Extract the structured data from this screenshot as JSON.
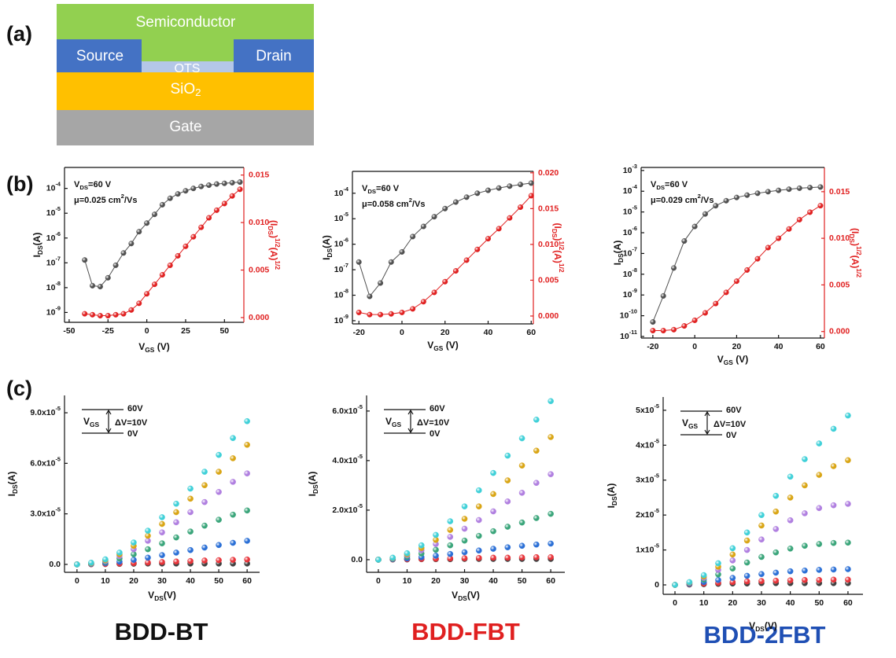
{
  "panel_labels": [
    "(a)",
    "(b)",
    "(c)"
  ],
  "device": {
    "layers": [
      "Semiconductor",
      "Source",
      "Drain",
      "OTS",
      "SiO2",
      "Gate"
    ]
  },
  "chart_data": [
    {
      "type": "line",
      "x": [
        -40,
        -35,
        -30,
        -25,
        -20,
        -15,
        -10,
        -5,
        0,
        5,
        10,
        15,
        20,
        25,
        30,
        35,
        40,
        45,
        50,
        55,
        60
      ],
      "xlim": [
        -53,
        62.5
      ],
      "xticks": [
        -50,
        -25,
        0,
        25,
        50
      ],
      "xlabel": "VGS (V)",
      "ylabel": "IDS(A)",
      "yscale": "log",
      "ylim": [
        4e-10,
        0.0007
      ],
      "yticks": [
        {
          "value": 1e-09,
          "label": "10-9"
        },
        {
          "value": 1e-08,
          "label": "10-8"
        },
        {
          "value": 1e-07,
          "label": "10-7"
        },
        {
          "value": 1e-06,
          "label": "10-6"
        },
        {
          "value": 1e-05,
          "label": "10-5"
        },
        {
          "value": 0.0001,
          "label": "10-4"
        }
      ],
      "y2label": "(IDS)1/2(A)1/2",
      "y2lim": [
        -0.0005,
        0.0158
      ],
      "y2ticks": [
        {
          "value": 0,
          "label": "0.000"
        },
        0.005,
        {
          "value": 0.01,
          "label": "0.010"
        },
        0.015
      ],
      "annotations": [
        "VDS=60 V",
        "μ=0.025 cm2/Vs"
      ],
      "series": [
        {
          "color": "#505050",
          "values": [
            1.3e-07,
            1.2e-08,
            1.1e-08,
            2.5e-08,
            8e-08,
            2.5e-07,
            6e-07,
            1.8e-06,
            4e-06,
            9e-06,
            2.2e-05,
            4e-05,
            6e-05,
            8e-05,
            0.0001,
            0.00012,
            0.000135,
            0.00015,
            0.00016,
            0.00017,
            0.00018
          ]
        },
        {
          "color": "#e02020",
          "axis": "y2",
          "values": [
            0.0004,
            0.0003,
            0.0002,
            0.0002,
            0.0003,
            0.0004,
            0.0008,
            0.0015,
            0.0025,
            0.0035,
            0.0045,
            0.0055,
            0.0065,
            0.0075,
            0.0085,
            0.0095,
            0.0105,
            0.0113,
            0.012,
            0.0128,
            0.0135
          ]
        }
      ]
    },
    {
      "type": "line",
      "x": [
        -20,
        -15,
        -10,
        -5,
        0,
        5,
        10,
        15,
        20,
        25,
        30,
        35,
        40,
        45,
        50,
        55,
        60
      ],
      "xlim": [
        -23,
        61
      ],
      "xticks": [
        -20,
        0,
        20,
        40,
        60
      ],
      "xlabel": "VGS (V)",
      "ylabel": "IDS(A)",
      "yscale": "log",
      "ylim": [
        7.5e-10,
        0.00072
      ],
      "yticks": [
        {
          "value": 1e-09,
          "label": "10-9"
        },
        {
          "value": 1e-08,
          "label": "10-8"
        },
        {
          "value": 1e-07,
          "label": "10-7"
        },
        {
          "value": 1e-06,
          "label": "10-6"
        },
        {
          "value": 1e-05,
          "label": "10-5"
        },
        {
          "value": 0.0001,
          "label": "10-4"
        }
      ],
      "y2label": "(IDS)1/2(A)1/2",
      "y2lim": [
        -0.0011,
        0.0202
      ],
      "y2ticks": [
        {
          "value": 0,
          "label": "0.000"
        },
        0.005,
        {
          "value": 0.01,
          "label": "0.010"
        },
        0.015,
        {
          "value": 0.02,
          "label": "0.020"
        }
      ],
      "annotations": [
        "VDS=60 V",
        "μ=0.058 cm2/Vs"
      ],
      "series": [
        {
          "color": "#505050",
          "values": [
            2e-07,
            9e-09,
            3e-08,
            2e-07,
            5e-07,
            2e-06,
            5e-06,
            1.2e-05,
            2.5e-05,
            4.5e-05,
            7e-05,
            0.0001,
            0.00013,
            0.00016,
            0.00019,
            0.00022,
            0.00025
          ]
        },
        {
          "color": "#e02020",
          "axis": "y2",
          "values": [
            0.0005,
            0.0002,
            0.0002,
            0.0003,
            0.0005,
            0.001,
            0.002,
            0.0033,
            0.0048,
            0.0063,
            0.0078,
            0.0093,
            0.0108,
            0.0122,
            0.0137,
            0.0152,
            0.0168
          ]
        }
      ]
    },
    {
      "type": "line",
      "x": [
        -20,
        -15,
        -10,
        -5,
        0,
        5,
        10,
        15,
        20,
        25,
        30,
        35,
        40,
        45,
        50,
        55,
        60
      ],
      "xlim": [
        -25.6,
        61.9
      ],
      "xticks": [
        -20,
        0,
        20,
        40,
        60
      ],
      "xlabel": "VGS (V)",
      "ylabel": "IDS(A)",
      "yscale": "log",
      "ylim": [
        8.4e-12,
        0.0014
      ],
      "yticks": [
        {
          "value": 1e-11,
          "label": "10-11"
        },
        {
          "value": 1e-10,
          "label": "10-10"
        },
        {
          "value": 1e-09,
          "label": "10-9"
        },
        {
          "value": 1e-08,
          "label": "10-8"
        },
        {
          "value": 1e-07,
          "label": "10-7"
        },
        {
          "value": 1e-06,
          "label": "10-6"
        },
        {
          "value": 1e-05,
          "label": "10-5"
        },
        {
          "value": 0.0001,
          "label": "10-4"
        },
        {
          "value": 0.001,
          "label": "10-3"
        }
      ],
      "y2label": "(IDS)1/2(A)1/2",
      "y2lim": [
        -0.0007,
        0.0176
      ],
      "y2ticks": [
        {
          "value": 0,
          "label": "0.000"
        },
        0.005,
        {
          "value": 0.01,
          "label": "0.010"
        },
        0.015
      ],
      "annotations": [
        "VDS=60 V",
        "μ=0.029 cm2/Vs"
      ],
      "series": [
        {
          "color": "#505050",
          "values": [
            5e-11,
            9e-10,
            2e-08,
            4e-07,
            2e-06,
            8e-06,
            2e-05,
            3.5e-05,
            5e-05,
            6.5e-05,
            8e-05,
            9.5e-05,
            0.00011,
            0.000125,
            0.00014,
            0.00015,
            0.00016
          ]
        },
        {
          "color": "#e02020",
          "axis": "y2",
          "values": [
            0.0001,
            0.0001,
            0.0002,
            0.0006,
            0.0012,
            0.002,
            0.003,
            0.0042,
            0.0054,
            0.0066,
            0.0078,
            0.009,
            0.01,
            0.011,
            0.012,
            0.0128,
            0.0135
          ]
        }
      ]
    },
    {
      "type": "scatter",
      "x": [
        0,
        5,
        10,
        15,
        20,
        25,
        30,
        35,
        40,
        45,
        50,
        55,
        60
      ],
      "xlim": [
        -4.4,
        64.4
      ],
      "xticks": [
        0,
        10,
        20,
        30,
        40,
        50,
        60
      ],
      "xlabel": "VDS(V)",
      "ylabel": "IDS(A)",
      "ylim": [
        -4.7e-06,
        0.0001003
      ],
      "yticks": [
        {
          "value": 0,
          "label": "0.0"
        },
        {
          "value": 3e-05,
          "label": "3.0x10-5"
        },
        {
          "value": 6e-05,
          "label": "6.0x10-5"
        },
        {
          "value": 9e-05,
          "label": "9.0x10-5"
        }
      ],
      "annotations": [
        "60V",
        "VGS",
        "ΔV=10V",
        "0V"
      ],
      "series": [
        {
          "color": "#404040",
          "values": [
            0,
            1e-07,
            2e-07,
            3e-07,
            4e-07,
            5e-07,
            5e-07,
            5e-07,
            5e-07,
            5e-07,
            5e-07,
            5e-07,
            5e-07
          ]
        },
        {
          "color": "#e8353b",
          "values": [
            0,
            1e-07,
            3e-07,
            5e-07,
            8e-07,
            1.1e-06,
            1.4e-06,
            1.7e-06,
            2e-06,
            2.3e-06,
            2.5e-06,
            2.7e-06,
            2.9e-06
          ]
        },
        {
          "color": "#2a6fd6",
          "values": [
            0,
            3e-07,
            8e-07,
            1.6e-06,
            2.7e-06,
            4e-06,
            5.5e-06,
            7e-06,
            8.5e-06,
            1e-05,
            1.15e-05,
            1.28e-05,
            1.4e-05
          ]
        },
        {
          "color": "#3aa57a",
          "values": [
            0,
            5e-07,
            1.5e-06,
            3.5e-06,
            6e-06,
            9e-06,
            1.25e-05,
            1.6e-05,
            1.95e-05,
            2.3e-05,
            2.65e-05,
            2.95e-05,
            3.2e-05
          ]
        },
        {
          "color": "#b07fe0",
          "values": [
            0,
            7e-07,
            2e-06,
            5e-06,
            9e-06,
            1.4e-05,
            1.9e-05,
            2.5e-05,
            3.1e-05,
            3.7e-05,
            4.3e-05,
            4.9e-05,
            5.4e-05
          ]
        },
        {
          "color": "#d9a514",
          "values": [
            0,
            8e-07,
            2.5e-06,
            6e-06,
            1.1e-05,
            1.7e-05,
            2.4e-05,
            3.1e-05,
            3.9e-05,
            4.7e-05,
            5.5e-05,
            6.3e-05,
            7.1e-05
          ]
        },
        {
          "color": "#3fd0d8",
          "values": [
            0,
            1e-06,
            3e-06,
            7e-06,
            1.3e-05,
            2e-05,
            2.8e-05,
            3.6e-05,
            4.5e-05,
            5.5e-05,
            6.5e-05,
            7.5e-05,
            8.5e-05
          ]
        }
      ]
    },
    {
      "type": "scatter",
      "x": [
        0,
        5,
        10,
        15,
        20,
        25,
        30,
        35,
        40,
        45,
        50,
        55,
        60
      ],
      "xlim": [
        -4.1,
        64.9
      ],
      "xticks": [
        0,
        10,
        20,
        30,
        40,
        50,
        60
      ],
      "xlabel": "VDS(V)",
      "ylabel": "IDS(A)",
      "ylim": [
        -5.1e-06,
        6.63e-05
      ],
      "yticks": [
        {
          "value": 0,
          "label": "0.0"
        },
        {
          "value": 2e-05,
          "label": "2.0x10-5"
        },
        {
          "value": 4e-05,
          "label": "4.0x10-5"
        },
        {
          "value": 6e-05,
          "label": "6.0x10-5"
        }
      ],
      "annotations": [
        "60V",
        "VGS",
        "ΔV=10V",
        "0V"
      ],
      "series": [
        {
          "color": "#404040",
          "values": [
            0,
            1e-07,
            1e-07,
            2e-07,
            2e-07,
            2e-07,
            3e-07,
            3e-07,
            3e-07,
            3e-07,
            3e-07,
            3e-07,
            3e-07
          ]
        },
        {
          "color": "#e8353b",
          "values": [
            0,
            1e-07,
            2e-07,
            3e-07,
            4e-07,
            5e-07,
            6e-07,
            7e-07,
            8e-07,
            8e-07,
            9e-07,
            1e-06,
            1e-06
          ]
        },
        {
          "color": "#2a6fd6",
          "values": [
            0,
            2e-07,
            5e-07,
            1e-06,
            1.6e-06,
            2.3e-06,
            3e-06,
            3.7e-06,
            4.4e-06,
            5e-06,
            5.6e-06,
            6.1e-06,
            6.5e-06
          ]
        },
        {
          "color": "#3aa57a",
          "values": [
            0,
            4e-07,
            1.2e-06,
            2.5e-06,
            4e-06,
            5.8e-06,
            7.7e-06,
            9.6e-06,
            1.15e-05,
            1.33e-05,
            1.5e-05,
            1.68e-05,
            1.85e-05
          ]
        },
        {
          "color": "#b07fe0",
          "values": [
            0,
            6e-07,
            1.8e-06,
            3.8e-06,
            6.3e-06,
            9.2e-06,
            1.25e-05,
            1.6e-05,
            1.95e-05,
            2.35e-05,
            2.7e-05,
            3.1e-05,
            3.45e-05
          ]
        },
        {
          "color": "#d9a514",
          "values": [
            0,
            7e-07,
            2.2e-06,
            4.7e-06,
            8e-06,
            1.2e-05,
            1.65e-05,
            2.15e-05,
            2.65e-05,
            3.2e-05,
            3.8e-05,
            4.4e-05,
            4.95e-05
          ]
        },
        {
          "color": "#3fd0d8",
          "values": [
            0,
            8e-07,
            2.6e-06,
            5.8e-06,
            1e-05,
            1.55e-05,
            2.15e-05,
            2.8e-05,
            3.5e-05,
            4.2e-05,
            4.9e-05,
            5.65e-05,
            6.4e-05
          ]
        }
      ]
    },
    {
      "type": "scatter",
      "x": [
        0,
        5,
        10,
        15,
        20,
        25,
        30,
        35,
        40,
        45,
        50,
        55,
        60
      ],
      "xlim": [
        -4.1,
        65.2
      ],
      "xticks": [
        0,
        10,
        20,
        30,
        40,
        50,
        60
      ],
      "xlabel": "VDS(V)",
      "ylabel": "IDS(A)",
      "ylim": [
        -2.7e-06,
        5.38e-05
      ],
      "yticks": [
        0,
        {
          "value": 1e-05,
          "label": "1x10-5"
        },
        {
          "value": 2e-05,
          "label": "2x10-5"
        },
        {
          "value": 3e-05,
          "label": "3x10-5"
        },
        {
          "value": 4e-05,
          "label": "4x10-5"
        },
        {
          "value": 5e-05,
          "label": "5x10-5"
        }
      ],
      "annotations": [
        "60V",
        "VGS",
        "ΔV=10V",
        "0V"
      ],
      "series": [
        {
          "color": "#404040",
          "values": [
            0,
            1e-07,
            2e-07,
            3e-07,
            4e-07,
            4e-07,
            5e-07,
            5e-07,
            5e-07,
            5e-07,
            5e-07,
            5e-07,
            5e-07
          ]
        },
        {
          "color": "#e8353b",
          "values": [
            0,
            2e-07,
            4e-07,
            6e-07,
            8e-07,
            1e-06,
            1.1e-06,
            1.2e-06,
            1.3e-06,
            1.4e-06,
            1.4e-06,
            1.5e-06,
            1.5e-06
          ]
        },
        {
          "color": "#2a6fd6",
          "values": [
            0,
            3e-07,
            8e-07,
            1.4e-06,
            2e-06,
            2.6e-06,
            3.1e-06,
            3.5e-06,
            3.9e-06,
            4.1e-06,
            4.3e-06,
            4.4e-06,
            4.5e-06
          ]
        },
        {
          "color": "#3aa57a",
          "values": [
            0,
            5e-07,
            1.5e-06,
            3e-06,
            4.7e-06,
            6.4e-06,
            8e-06,
            9.3e-06,
            1.04e-05,
            1.12e-05,
            1.17e-05,
            1.2e-05,
            1.21e-05
          ]
        },
        {
          "color": "#b07fe0",
          "values": [
            0,
            6e-07,
            2e-06,
            4.3e-06,
            7e-06,
            1e-05,
            1.3e-05,
            1.6e-05,
            1.85e-05,
            2.05e-05,
            2.2e-05,
            2.28e-05,
            2.32e-05
          ]
        },
        {
          "color": "#d9a514",
          "values": [
            0,
            7e-07,
            2.4e-06,
            5.2e-06,
            8.7e-06,
            1.27e-05,
            1.7e-05,
            2.1e-05,
            2.5e-05,
            2.85e-05,
            3.15e-05,
            3.4e-05,
            3.57e-05
          ]
        },
        {
          "color": "#3fd0d8",
          "values": [
            0,
            8e-07,
            2.8e-06,
            6.2e-06,
            1.05e-05,
            1.5e-05,
            2e-05,
            2.55e-05,
            3.1e-05,
            3.6e-05,
            4.05e-05,
            4.47e-05,
            4.85e-05
          ]
        }
      ]
    }
  ],
  "materials": [
    "BDD-BT",
    "BDD-FBT",
    "BDD-2FBT"
  ]
}
